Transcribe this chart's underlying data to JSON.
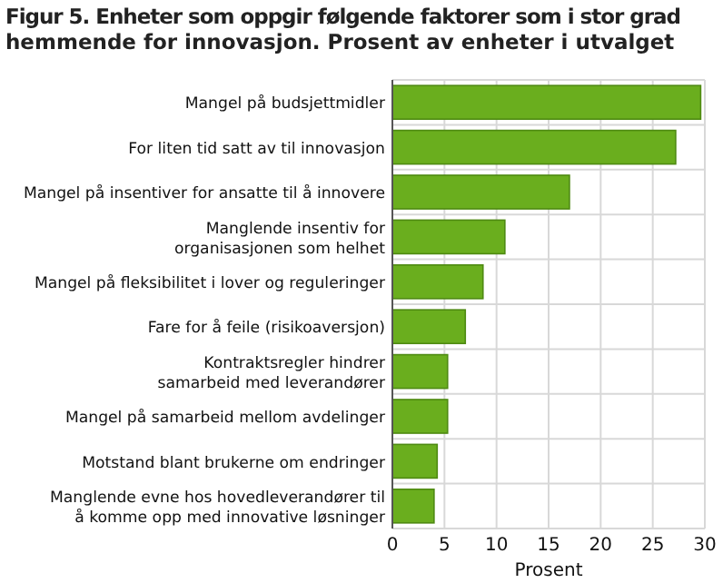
{
  "chart_data": {
    "type": "bar",
    "orientation": "horizontal",
    "title": "Figur 5. Enheter som oppgir følgende faktorer som i stor grad hemmende for innovasjon. Prosent av enheter i utvalget",
    "xlabel": "Prosent",
    "categories": [
      "Mangel på budsjettmidler",
      "For liten tid satt av til innovasjon",
      "Mangel på insentiver for ansatte til å innovere",
      "Manglende insentiv for\norganisasjonen som helhet",
      "Mangel på fleksibilitet i lover og reguleringer",
      "Fare for å feile (risikoaversjon)",
      "Kontraktsregler hindrer\nsamarbeid med leverandører",
      "Mangel på samarbeid mellom avdelinger",
      "Motstand blant brukerne om endringer",
      "Manglende evne hos hovedleverandører til\nå komme opp med innovative løsninger"
    ],
    "values": [
      29.6,
      27.2,
      17.0,
      10.8,
      8.7,
      7.0,
      5.3,
      5.3,
      4.3,
      4.0
    ],
    "color": "#6aae1e",
    "xlim": [
      0,
      30
    ],
    "xticks": [
      0,
      5,
      10,
      15,
      20,
      25,
      30
    ],
    "grid": true
  }
}
